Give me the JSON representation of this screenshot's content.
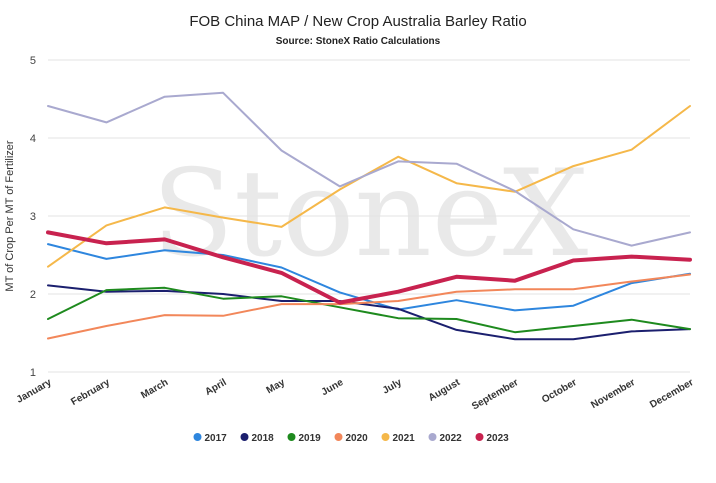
{
  "chart_data": {
    "type": "line",
    "title": "FOB China MAP / New Crop Australia Barley Ratio",
    "subtitle": "Source: StoneX Ratio Calculations",
    "xlabel": "",
    "ylabel": "MT of Crop Per MT of Fertilizer",
    "ylim": [
      1,
      5
    ],
    "yticks": [
      1,
      2,
      3,
      4,
      5
    ],
    "grid": true,
    "legend_position": "bottom",
    "watermark": "StoneX",
    "categories": [
      "January",
      "February",
      "March",
      "April",
      "May",
      "June",
      "July",
      "August",
      "September",
      "October",
      "November",
      "December"
    ],
    "series": [
      {
        "name": "2017",
        "color": "#2e86de",
        "width": 2,
        "values": [
          2.64,
          2.45,
          2.56,
          2.5,
          2.34,
          2.02,
          1.8,
          1.92,
          1.79,
          1.85,
          2.14,
          2.26
        ]
      },
      {
        "name": "2018",
        "color": "#1b1f6e",
        "width": 2,
        "values": [
          2.11,
          2.03,
          2.04,
          2.0,
          1.91,
          1.91,
          1.81,
          1.54,
          1.42,
          1.42,
          1.52,
          1.55
        ]
      },
      {
        "name": "2019",
        "color": "#1e8a1e",
        "width": 2,
        "values": [
          1.68,
          2.05,
          2.08,
          1.94,
          1.97,
          1.83,
          1.69,
          1.68,
          1.51,
          1.59,
          1.67,
          1.55
        ]
      },
      {
        "name": "2020",
        "color": "#f2875a",
        "width": 2,
        "values": [
          1.43,
          1.59,
          1.73,
          1.72,
          1.87,
          1.87,
          1.91,
          2.03,
          2.06,
          2.06,
          2.16,
          2.25
        ]
      },
      {
        "name": "2021",
        "color": "#f5b84a",
        "width": 2,
        "values": [
          2.35,
          2.88,
          3.11,
          2.98,
          2.86,
          3.34,
          3.76,
          3.42,
          3.31,
          3.64,
          3.85,
          4.41
        ]
      },
      {
        "name": "2022",
        "color": "#a9a9cf",
        "width": 2,
        "values": [
          4.41,
          4.2,
          4.53,
          4.58,
          3.84,
          3.38,
          3.7,
          3.67,
          3.32,
          2.83,
          2.62,
          2.79
        ]
      },
      {
        "name": "2023",
        "color": "#c8224f",
        "width": 4,
        "values": [
          2.79,
          2.65,
          2.7,
          2.47,
          2.27,
          1.89,
          2.03,
          2.22,
          2.17,
          2.43,
          2.48,
          2.44
        ]
      }
    ]
  }
}
